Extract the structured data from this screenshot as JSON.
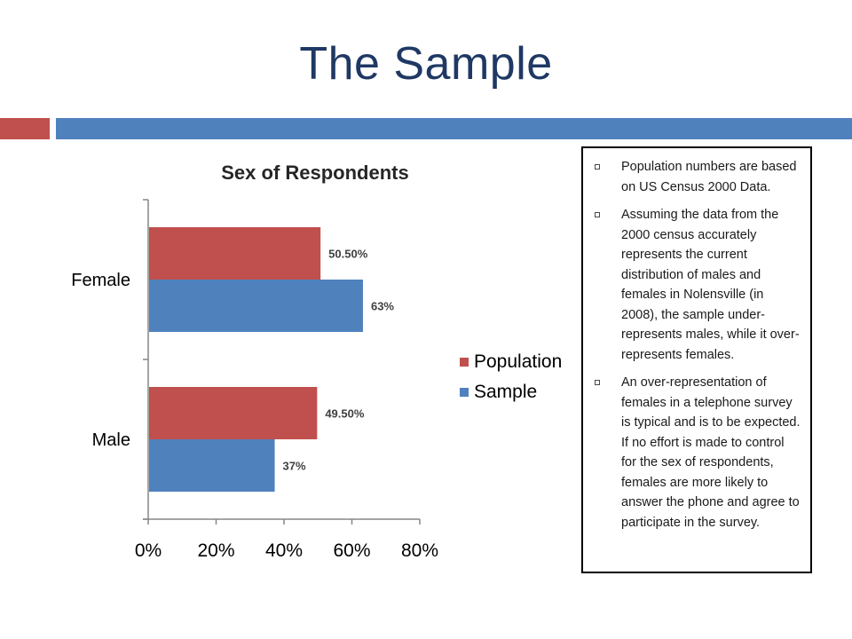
{
  "slide": {
    "title": "The Sample",
    "colors": {
      "title": "#1f3864",
      "accent_red": "#c0504d",
      "accent_blue": "#4f81bd"
    }
  },
  "bullets": [
    "Population numbers are based on US Census 2000 Data.",
    "Assuming the data from the 2000 census accurately represents the current distribution of males and females in Nolensville (in 2008), the sample under-represents males, while it over-represents females.",
    "An over-representation of females in a telephone survey is typical and is to be expected.  If no effort is made to control for the sex of respondents, females are more likely to answer the phone and agree to participate in the survey."
  ],
  "chart_data": {
    "type": "bar",
    "orientation": "horizontal",
    "title": "Sex of Respondents",
    "categories": [
      "Female",
      "Male"
    ],
    "series": [
      {
        "name": "Population",
        "color": "#c0504d",
        "values": [
          50.5,
          49.5
        ],
        "labels": [
          "50.50%",
          "49.50%"
        ]
      },
      {
        "name": "Sample",
        "color": "#4f81bd",
        "values": [
          63,
          37
        ],
        "labels": [
          "63%",
          "37%"
        ]
      }
    ],
    "xlim": [
      0,
      80
    ],
    "xticks": [
      "0%",
      "20%",
      "40%",
      "60%",
      "80%"
    ],
    "legend_position": "right",
    "grid": false
  }
}
